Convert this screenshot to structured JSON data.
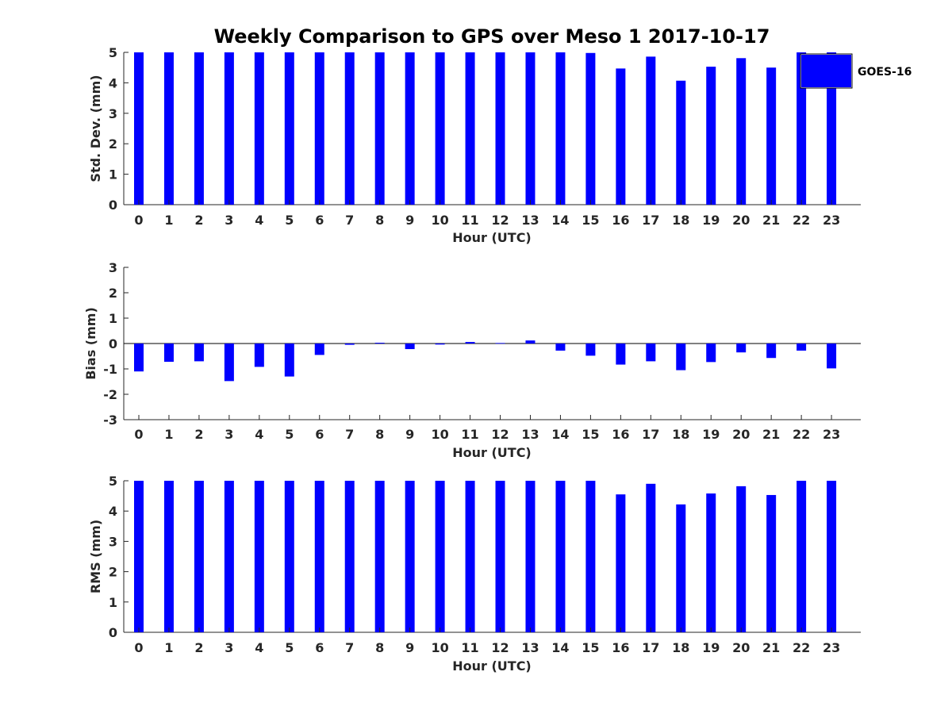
{
  "title": "Weekly Comparison to GPS over Meso 1 2017-10-17",
  "legend": {
    "label": "GOES-16",
    "placement": "top-right",
    "color": "#0000ff"
  },
  "chart_data": [
    {
      "type": "bar",
      "categories": [
        "0",
        "1",
        "2",
        "3",
        "4",
        "5",
        "6",
        "7",
        "8",
        "9",
        "10",
        "11",
        "12",
        "13",
        "14",
        "15",
        "16",
        "17",
        "18",
        "19",
        "20",
        "21",
        "22",
        "23"
      ],
      "series": [
        {
          "name": "GOES-16",
          "color": "#0000ff",
          "values": [
            5,
            5,
            5,
            5,
            5,
            5,
            5,
            5,
            5,
            5,
            5,
            5,
            5,
            5,
            5,
            4.98,
            4.47,
            4.86,
            4.07,
            4.53,
            4.81,
            4.5,
            5,
            5
          ]
        }
      ],
      "xlabel": "Hour (UTC)",
      "ylabel": "Std. Dev. (mm)",
      "ylim": [
        0,
        5
      ],
      "yticks": [
        "0",
        "1",
        "2",
        "3",
        "4",
        "5"
      ]
    },
    {
      "type": "bar",
      "categories": [
        "0",
        "1",
        "2",
        "3",
        "4",
        "5",
        "6",
        "7",
        "8",
        "9",
        "10",
        "11",
        "12",
        "13",
        "14",
        "15",
        "16",
        "17",
        "18",
        "19",
        "20",
        "21",
        "22",
        "23"
      ],
      "series": [
        {
          "name": "GOES-16",
          "color": "#0000ff",
          "values": [
            -1.1,
            -0.72,
            -0.7,
            -1.48,
            -0.92,
            -1.3,
            -0.45,
            -0.05,
            0.03,
            -0.22,
            -0.04,
            0.06,
            0.02,
            0.12,
            -0.28,
            -0.48,
            -0.83,
            -0.7,
            -1.05,
            -0.73,
            -0.35,
            -0.57,
            -0.28,
            -0.98
          ]
        }
      ],
      "xlabel": "Hour (UTC)",
      "ylabel": "Bias (mm)",
      "ylim": [
        -3,
        3
      ],
      "yticks": [
        "-3",
        "-2",
        "-1",
        "0",
        "1",
        "2",
        "3"
      ]
    },
    {
      "type": "bar",
      "categories": [
        "0",
        "1",
        "2",
        "3",
        "4",
        "5",
        "6",
        "7",
        "8",
        "9",
        "10",
        "11",
        "12",
        "13",
        "14",
        "15",
        "16",
        "17",
        "18",
        "19",
        "20",
        "21",
        "22",
        "23"
      ],
      "series": [
        {
          "name": "GOES-16",
          "color": "#0000ff",
          "values": [
            5,
            5,
            5,
            5,
            5,
            5,
            5,
            5,
            5,
            5,
            5,
            5,
            5,
            5,
            5,
            5,
            4.55,
            4.9,
            4.22,
            4.58,
            4.82,
            4.53,
            5,
            5
          ]
        }
      ],
      "xlabel": "Hour (UTC)",
      "ylabel": "RMS (mm)",
      "ylim": [
        0,
        5
      ],
      "yticks": [
        "0",
        "1",
        "2",
        "3",
        "4",
        "5"
      ]
    }
  ]
}
